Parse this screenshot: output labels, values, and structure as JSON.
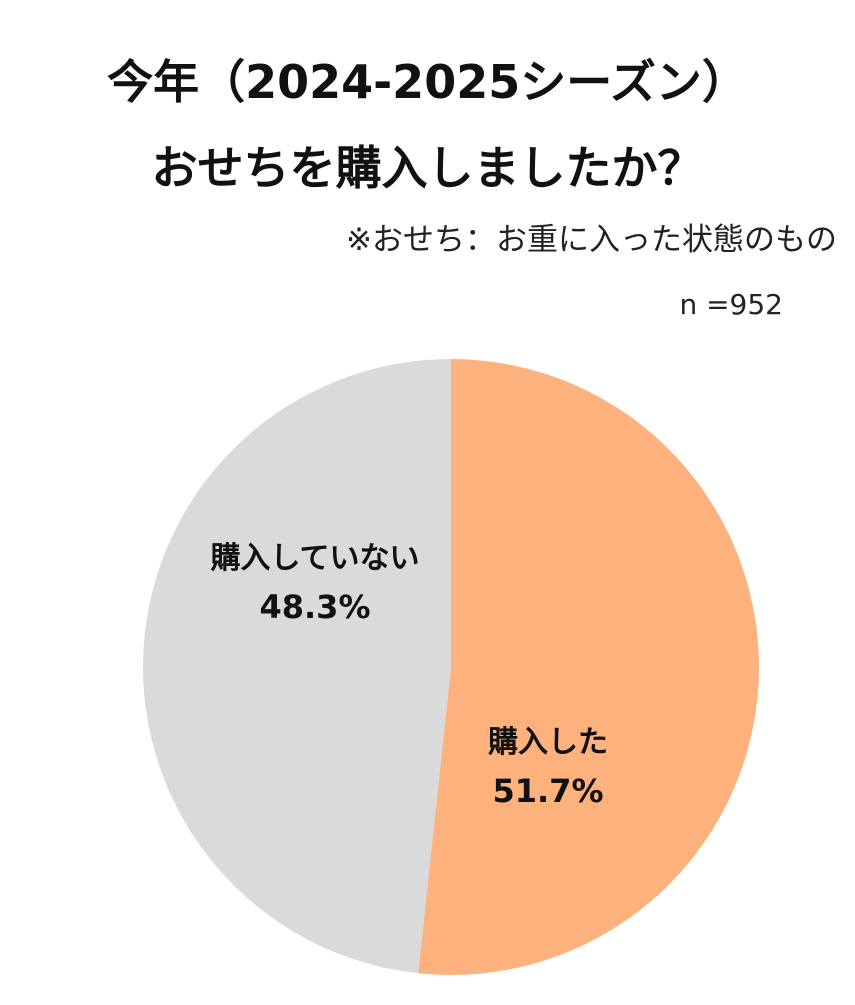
{
  "title_lines": [
    "今年（2024-2025シーズン）",
    "おせちを購入しましたか？"
  ],
  "note": "※おせち：お重に入った状態のもの",
  "sample_size": "n =952",
  "chart_data": {
    "type": "pie",
    "title": "今年（2024-2025シーズン）おせちを購入しましたか？",
    "start": "12 o'clock, clockwise",
    "slices": [
      {
        "label": "購入した",
        "value": 51.7,
        "value_label": "51.7%",
        "color": "#FDB27E"
      },
      {
        "label": "購入していない",
        "value": 48.3,
        "value_label": "48.3%",
        "color": "#DADADA"
      }
    ]
  }
}
